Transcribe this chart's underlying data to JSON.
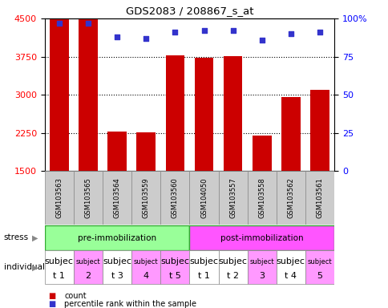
{
  "title": "GDS2083 / 208867_s_at",
  "samples": [
    "GSM103563",
    "GSM103565",
    "GSM103564",
    "GSM103559",
    "GSM103560",
    "GSM104050",
    "GSM103557",
    "GSM103558",
    "GSM103562",
    "GSM103561"
  ],
  "bar_values": [
    4500,
    4480,
    2280,
    2260,
    3780,
    3720,
    3760,
    2200,
    2960,
    3100
  ],
  "percentile_values": [
    97,
    97,
    88,
    87,
    91,
    92,
    92,
    86,
    90,
    91
  ],
  "ylim_left": [
    1500,
    4500
  ],
  "ylim_right": [
    0,
    100
  ],
  "yticks_left": [
    1500,
    2250,
    3000,
    3750,
    4500
  ],
  "yticks_right": [
    0,
    25,
    50,
    75,
    100
  ],
  "bar_color": "#cc0000",
  "dot_color": "#3333cc",
  "stress_groups": [
    {
      "label": "pre-immobilization",
      "color": "#99ff99",
      "border": "#33aa33",
      "indices": [
        0,
        1,
        2,
        3,
        4
      ]
    },
    {
      "label": "post-immobilization",
      "color": "#ff55ff",
      "border": "#33aa33",
      "indices": [
        5,
        6,
        7,
        8,
        9
      ]
    }
  ],
  "individual_lines": [
    [
      "subjec",
      "subjec",
      "subjec",
      "subjec",
      "subjec",
      "subjec",
      "subjec",
      "subjec",
      "subjec",
      "subjec"
    ],
    [
      "t 1",
      "t\n2",
      "t 3",
      "t\n4",
      "t 5",
      "t 1",
      "t 2",
      "t\n3",
      "t 4",
      "t\n5"
    ]
  ],
  "individual_top": [
    "subjec",
    "subject",
    "subjec",
    "subject",
    "subjec",
    "subjec",
    "subjec",
    "subject",
    "subjec",
    "subject"
  ],
  "individual_bot": [
    "t 1",
    "2",
    "t 3",
    "4",
    "t 5",
    "t 1",
    "t 2",
    "3",
    "t 4",
    "5"
  ],
  "individual_top_size": [
    8,
    6,
    8,
    6,
    8,
    8,
    8,
    6,
    8,
    6
  ],
  "individual_colors": [
    "#ffffff",
    "#ff99ff",
    "#ffffff",
    "#ff99ff",
    "#ff99ff",
    "#ffffff",
    "#ffffff",
    "#ff99ff",
    "#ffffff",
    "#ff99ff"
  ],
  "sample_bg": "#cccccc",
  "legend_count_color": "#cc0000",
  "legend_pct_color": "#3333cc"
}
